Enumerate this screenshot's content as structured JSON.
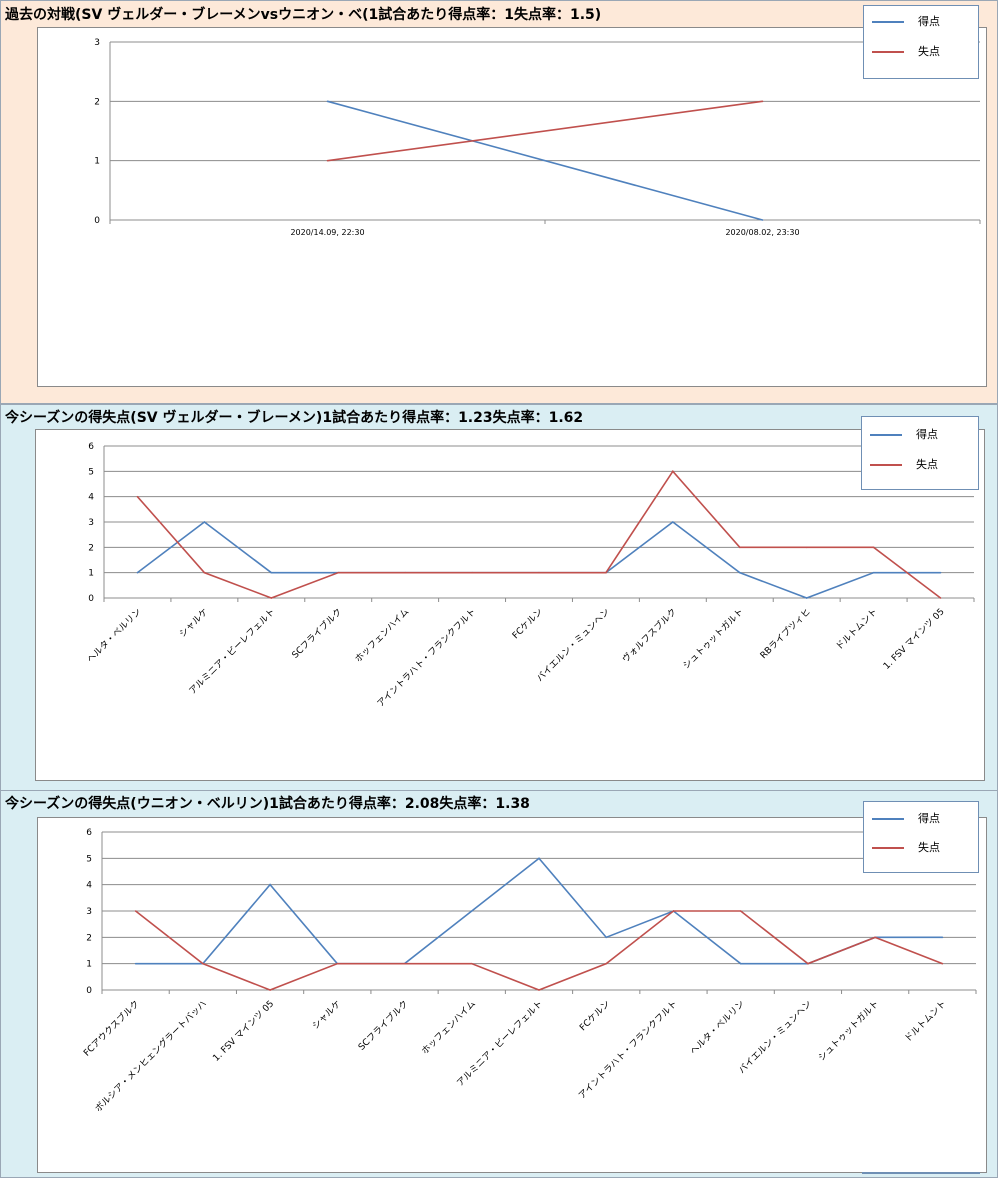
{
  "colors": {
    "score": "#4f81bd",
    "concede": "#c0504d",
    "grid": "#8c8c8c",
    "h2h_bg": "#fde9d9",
    "season_bg": "#daeef3"
  },
  "sections": [
    {
      "title": "過去の対戦(SV ヴェルダー・ブレーメンvsウニオン・ベ(1試合あたり得点率：1失点率：1.5)"
    },
    {
      "title": "今シーズンの得失点(SV ヴェルダー・ブレーメン)1試合あたり得点率：1.23失点率：1.62"
    },
    {
      "title": "今シーズンの得失点(ウニオン・ベルリン)1試合あたり得点率：2.08失点率：1.38"
    }
  ],
  "chart_data": [
    {
      "type": "line",
      "categories": [
        "2020/14.09, 22:30",
        "2020/08.02, 23:30"
      ],
      "series": [
        {
          "name": "得点",
          "values": [
            2,
            0
          ]
        },
        {
          "name": "失点",
          "values": [
            1,
            2
          ]
        }
      ],
      "ylim": [
        0,
        3
      ],
      "yticks": [
        0,
        1,
        2,
        3
      ],
      "grid": true,
      "legend": "top-right"
    },
    {
      "type": "line",
      "categories": [
        "ヘルタ・ベルリン",
        "シャルケ",
        "アルミニア・ビーレフェルト",
        "SCフライブルク",
        "ホッフェンハイム",
        "アイントラハト・フランクフルト",
        "FCケルン",
        "バイエルン・ミュンヘン",
        "ヴォルフスブルク",
        "シュトゥットガルト",
        "RBライプツィヒ",
        "ドルトムント",
        "1. FSV マインツ 05"
      ],
      "series": [
        {
          "name": "得点",
          "values": [
            1,
            3,
            1,
            1,
            1,
            1,
            1,
            1,
            3,
            1,
            0,
            1,
            1
          ]
        },
        {
          "name": "失点",
          "values": [
            4,
            1,
            0,
            1,
            1,
            1,
            1,
            1,
            5,
            2,
            2,
            2,
            0
          ]
        }
      ],
      "ylim": [
        0,
        6
      ],
      "yticks": [
        0,
        1,
        2,
        3,
        4,
        5,
        6
      ],
      "grid": true,
      "legend": "top-right"
    },
    {
      "type": "line",
      "categories": [
        "FCアウクスブルク",
        "ボルシア・メンヒェングラートバッハ",
        "1. FSV マインツ 05",
        "シャルケ",
        "SCフライブルク",
        "ホッフェンハイム",
        "アルミニア・ビーレフェルト",
        "FCケルン",
        "アイントラハト・フランクフルト",
        "ヘルタ・ベルリン",
        "バイエルン・ミュンヘン",
        "シュトゥットガルト",
        "ドルトムント"
      ],
      "series": [
        {
          "name": "得点",
          "values": [
            1,
            1,
            4,
            1,
            1,
            3,
            5,
            2,
            3,
            1,
            1,
            2,
            2
          ]
        },
        {
          "name": "失点",
          "values": [
            3,
            1,
            0,
            1,
            1,
            1,
            0,
            1,
            3,
            3,
            1,
            2,
            1
          ]
        }
      ],
      "ylim": [
        0,
        6
      ],
      "yticks": [
        0,
        1,
        2,
        3,
        4,
        5,
        6
      ],
      "grid": true,
      "legend": "top-right"
    }
  ]
}
